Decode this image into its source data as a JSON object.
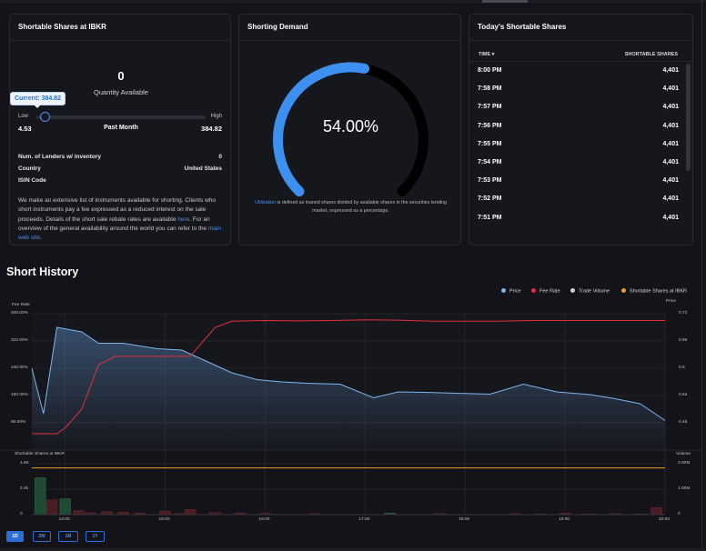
{
  "shortable_card": {
    "title": "Shortable Shares at IBKR",
    "quantity": "0",
    "quantity_label": "Quantity Available",
    "tooltip": "Current: 384.82",
    "low_label": "Low",
    "high_label": "High",
    "low_value": "4.53",
    "period": "Past Month",
    "high_value": "384.82",
    "current_fraction": 0.05,
    "rows": [
      {
        "label": "Num. of Lenders w/ inventory",
        "value": "0"
      },
      {
        "label": "Country",
        "value": "United States"
      },
      {
        "label": "ISIN Code",
        "value": ""
      }
    ],
    "desc_text": "We make an extensive list of instruments available for shorting. Clients who short instruments pay a fee expressed as a reduced interest on the sale proceeds. Details of the short sale rebate rates are available",
    "desc_link1": "here",
    "desc_mid": ". For an overview of the general availability around the world you can refer to the",
    "desc_link2": "main web site",
    "desc_end": "."
  },
  "demand_card": {
    "title": "Shorting Demand",
    "value_text": "54.00%",
    "value": 54.0,
    "note_link": "Utilization",
    "note_text": "is defined as loaned shares divided by available shares in the securities lending market, expressed as a percentage."
  },
  "today_card": {
    "title": "Today's Shortable Shares",
    "col_time": "TIME",
    "col_shares": "SHORTABLE SHARES",
    "rows": [
      {
        "time": "8:00 PM",
        "shares": "4,401"
      },
      {
        "time": "7:58 PM",
        "shares": "4,401"
      },
      {
        "time": "7:57 PM",
        "shares": "4,401"
      },
      {
        "time": "7:56 PM",
        "shares": "4,401"
      },
      {
        "time": "7:55 PM",
        "shares": "4,401"
      },
      {
        "time": "7:54 PM",
        "shares": "4,401"
      },
      {
        "time": "7:53 PM",
        "shares": "4,401"
      },
      {
        "time": "7:52 PM",
        "shares": "4,401"
      },
      {
        "time": "7:51 PM",
        "shares": "4,401"
      }
    ]
  },
  "history": {
    "title": "Short History",
    "legend": [
      {
        "label": "Price",
        "color": "#7cb5ec"
      },
      {
        "label": "Fee Rate",
        "color": "#e0313b"
      },
      {
        "label": "Trade Volume",
        "color": "#d0d0d6"
      },
      {
        "label": "Shortable Shares at IBKR",
        "color": "#f0a020"
      }
    ],
    "ranges": [
      "1D",
      "2W",
      "1M",
      "1Y"
    ],
    "active_range": "1D"
  },
  "chart_data": [
    {
      "type": "line",
      "ylabel": "Fee Rate",
      "y2label": "Price",
      "x_ticks": [
        "14:00",
        "15:00",
        "16:00",
        "17:00",
        "18:00",
        "19:00",
        "20:00"
      ],
      "y_ticks": [
        "400.00%",
        "320.00%",
        "240.00%",
        "160.00%",
        "80.00%"
      ],
      "y2_ticks": [
        "0.72",
        "0.66",
        "0.6",
        "0.54",
        "0.48"
      ],
      "ylim": [
        40,
        400
      ],
      "y2lim": [
        0.42,
        0.72
      ],
      "series": [
        {
          "name": "Price",
          "axis": "right",
          "x": [
            "13:40",
            "13:47",
            "13:55",
            "14:10",
            "14:20",
            "14:35",
            "14:55",
            "15:10",
            "15:25",
            "15:40",
            "15:55",
            "16:10",
            "16:25",
            "16:45",
            "17:05",
            "17:20",
            "17:35",
            "17:55",
            "18:15",
            "18:35",
            "18:55",
            "19:15",
            "19:30",
            "19:45",
            "20:00"
          ],
          "values": [
            0.6,
            0.5,
            0.69,
            0.68,
            0.655,
            0.655,
            0.643,
            0.64,
            0.615,
            0.59,
            0.575,
            0.57,
            0.567,
            0.565,
            0.535,
            0.548,
            0.547,
            0.545,
            0.543,
            0.565,
            0.548,
            0.542,
            0.533,
            0.522,
            0.485
          ]
        },
        {
          "name": "Fee Rate",
          "axis": "left",
          "x": [
            "13:40",
            "13:55",
            "14:00",
            "14:10",
            "14:20",
            "14:30",
            "14:45",
            "15:00",
            "15:15",
            "15:30",
            "15:40",
            "16:00",
            "16:20",
            "16:40",
            "17:00",
            "17:20",
            "17:40",
            "18:00",
            "18:20",
            "18:40",
            "19:00",
            "19:20",
            "19:40",
            "20:00"
          ],
          "values": [
            48,
            48,
            65,
            120,
            250,
            275,
            275,
            275,
            275,
            360,
            378,
            380,
            379,
            380,
            382,
            381,
            378,
            378,
            378,
            380,
            380,
            380,
            380,
            380
          ]
        }
      ]
    },
    {
      "type": "bar",
      "ylabel": "Shortable Shares at IBKR",
      "y2label": "Volume",
      "x_ticks": [
        "14:00",
        "15:00",
        "16:00",
        "17:00",
        "18:00",
        "19:00",
        "20:00"
      ],
      "y_ticks": [
        "4.8K",
        "2.4k",
        "0"
      ],
      "y2_ticks": [
        "2.00M",
        "1.00M",
        "0"
      ],
      "ylim": [
        0,
        4800
      ],
      "y2lim": [
        0,
        2000000
      ],
      "series": [
        {
          "name": "Shortable Shares at IBKR",
          "axis": "left",
          "type": "line",
          "x": [
            "13:40",
            "20:00"
          ],
          "values": [
            4401,
            4401
          ]
        },
        {
          "name": "Trade Volume",
          "axis": "right",
          "type": "bar",
          "x": [
            "13:45",
            "13:52",
            "14:00",
            "14:08",
            "14:15",
            "14:25",
            "14:35",
            "14:45",
            "15:00",
            "15:08",
            "15:15",
            "15:30",
            "15:45",
            "16:00",
            "16:30",
            "17:15",
            "17:45",
            "18:30",
            "18:45",
            "19:00",
            "19:15",
            "19:30",
            "19:45",
            "19:55"
          ],
          "values": [
            1450000,
            580000,
            620000,
            160000,
            70000,
            120000,
            100000,
            60000,
            140000,
            40000,
            200000,
            80000,
            60000,
            50000,
            40000,
            60000,
            40000,
            40000,
            30000,
            60000,
            30000,
            40000,
            30000,
            280000
          ],
          "up": [
            true,
            false,
            true,
            false,
            false,
            false,
            false,
            false,
            false,
            false,
            false,
            false,
            false,
            false,
            false,
            true,
            false,
            false,
            false,
            false,
            false,
            false,
            false,
            false
          ]
        }
      ]
    }
  ]
}
